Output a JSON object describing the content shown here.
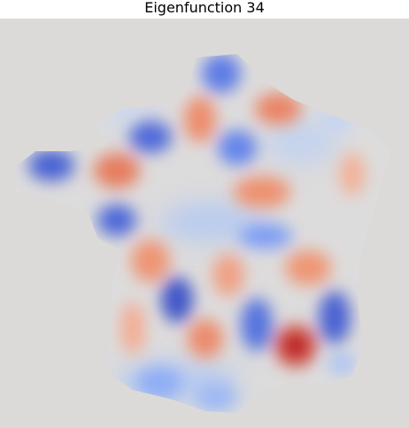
{
  "figure": {
    "title": "Eigenfunction 34",
    "background_color": "#dcdad8",
    "colormap": "coolwarm",
    "colors": {
      "negative_strong": "#3b4cc0",
      "negative_mid": "#7b9ff9",
      "neutral": "#dddcdc",
      "positive_mid": "#f49a7b",
      "positive_strong": "#b40426"
    }
  }
}
